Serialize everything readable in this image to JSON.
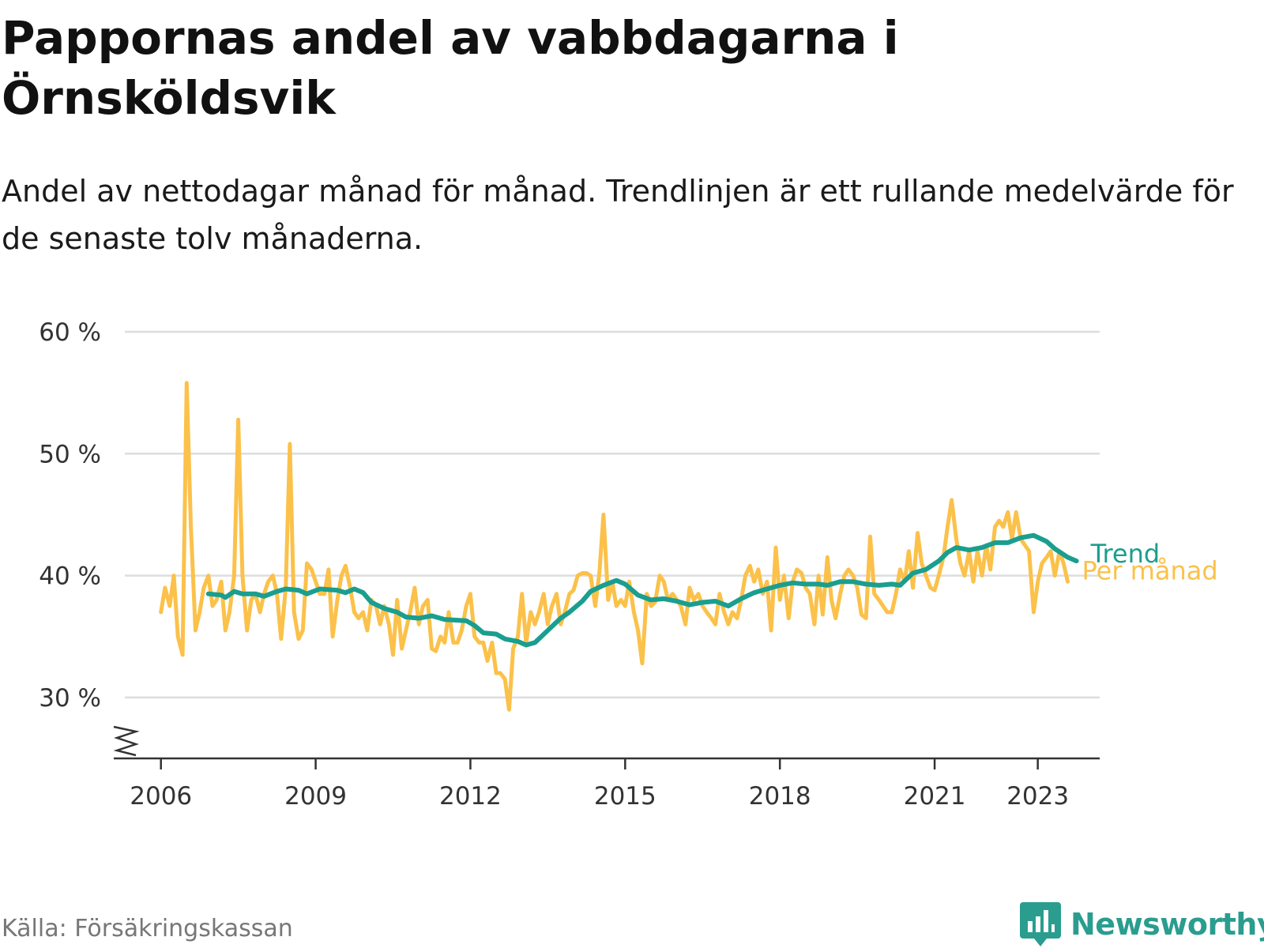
{
  "title": "Pappornas andel av vabbdagarna i Örnsköldsvik",
  "subtitle": "Andel av nettodagar månad för månad. Trendlinjen är ett rullande medelvärde för de senaste tolv månaderna.",
  "source": "Källa: Försäkringskassan",
  "brand": "Newsworthy",
  "colors": {
    "per_month": "#fbc14a",
    "trend": "#1a9e8f",
    "grid": "#dddddd",
    "axis": "#333333",
    "brand": "#2a9d8f"
  },
  "chart_data": {
    "type": "line",
    "y_tick_labels": [
      "30 %",
      "40 %",
      "50 %",
      "60 %"
    ],
    "y_ticks": [
      30,
      40,
      50,
      60
    ],
    "x_tick_labels": [
      "2006",
      "2009",
      "2012",
      "2015",
      "2018",
      "2021",
      "2023"
    ],
    "x_ticks": [
      2006,
      2009,
      2012,
      2015,
      2018,
      2021,
      2023
    ],
    "ylim": [
      25,
      60
    ],
    "xlim": [
      2005.3,
      2024.2
    ],
    "grid": true,
    "broken_y_axis": true,
    "series": [
      {
        "name": "Per månad",
        "points": [
          [
            2006.0,
            37
          ],
          [
            2006.08,
            39
          ],
          [
            2006.17,
            37.5
          ],
          [
            2006.25,
            40
          ],
          [
            2006.33,
            35
          ],
          [
            2006.42,
            33.5
          ],
          [
            2006.5,
            55.8
          ],
          [
            2006.58,
            44
          ],
          [
            2006.67,
            35.5
          ],
          [
            2006.75,
            37
          ],
          [
            2006.83,
            39
          ],
          [
            2006.92,
            40
          ],
          [
            2007.0,
            37.5
          ],
          [
            2007.08,
            38
          ],
          [
            2007.17,
            39.5
          ],
          [
            2007.25,
            35.5
          ],
          [
            2007.33,
            37
          ],
          [
            2007.42,
            40
          ],
          [
            2007.5,
            52.8
          ],
          [
            2007.58,
            40
          ],
          [
            2007.67,
            35.5
          ],
          [
            2007.75,
            38
          ],
          [
            2007.83,
            38.5
          ],
          [
            2007.92,
            37
          ],
          [
            2008.0,
            38.5
          ],
          [
            2008.08,
            39.5
          ],
          [
            2008.17,
            40
          ],
          [
            2008.25,
            38.5
          ],
          [
            2008.33,
            34.8
          ],
          [
            2008.42,
            39
          ],
          [
            2008.5,
            50.8
          ],
          [
            2008.58,
            37
          ],
          [
            2008.67,
            34.8
          ],
          [
            2008.75,
            35.5
          ],
          [
            2008.83,
            41
          ],
          [
            2008.92,
            40.5
          ],
          [
            2009.0,
            39.5
          ],
          [
            2009.08,
            38.5
          ],
          [
            2009.17,
            38.5
          ],
          [
            2009.25,
            40.5
          ],
          [
            2009.33,
            35
          ],
          [
            2009.42,
            38
          ],
          [
            2009.5,
            40
          ],
          [
            2009.58,
            40.8
          ],
          [
            2009.67,
            39
          ],
          [
            2009.75,
            37
          ],
          [
            2009.83,
            36.5
          ],
          [
            2009.92,
            37
          ],
          [
            2010.0,
            35.5
          ],
          [
            2010.08,
            38
          ],
          [
            2010.17,
            37.5
          ],
          [
            2010.25,
            36
          ],
          [
            2010.33,
            37.5
          ],
          [
            2010.42,
            36
          ],
          [
            2010.5,
            33.5
          ],
          [
            2010.58,
            38
          ],
          [
            2010.67,
            34
          ],
          [
            2010.75,
            35.5
          ],
          [
            2010.83,
            37
          ],
          [
            2010.92,
            39
          ],
          [
            2011.0,
            36
          ],
          [
            2011.08,
            37.5
          ],
          [
            2011.17,
            38
          ],
          [
            2011.25,
            34
          ],
          [
            2011.33,
            33.8
          ],
          [
            2011.42,
            35
          ],
          [
            2011.5,
            34.5
          ],
          [
            2011.58,
            37
          ],
          [
            2011.67,
            34.5
          ],
          [
            2011.75,
            34.5
          ],
          [
            2011.83,
            35.5
          ],
          [
            2011.92,
            37.5
          ],
          [
            2012.0,
            38.5
          ],
          [
            2012.08,
            35
          ],
          [
            2012.17,
            34.5
          ],
          [
            2012.25,
            34.5
          ],
          [
            2012.33,
            33
          ],
          [
            2012.42,
            34.5
          ],
          [
            2012.5,
            32
          ],
          [
            2012.58,
            32
          ],
          [
            2012.67,
            31.5
          ],
          [
            2012.75,
            29
          ],
          [
            2012.83,
            34
          ],
          [
            2012.92,
            35
          ],
          [
            2013.0,
            38.5
          ],
          [
            2013.08,
            34.5
          ],
          [
            2013.17,
            37
          ],
          [
            2013.25,
            36
          ],
          [
            2013.33,
            37
          ],
          [
            2013.42,
            38.5
          ],
          [
            2013.5,
            36
          ],
          [
            2013.58,
            37.5
          ],
          [
            2013.67,
            38.5
          ],
          [
            2013.75,
            36
          ],
          [
            2013.83,
            37
          ],
          [
            2013.92,
            38.5
          ],
          [
            2014.0,
            38.8
          ],
          [
            2014.08,
            40
          ],
          [
            2014.17,
            40.2
          ],
          [
            2014.25,
            40.2
          ],
          [
            2014.33,
            40
          ],
          [
            2014.42,
            37.5
          ],
          [
            2014.5,
            40.2
          ],
          [
            2014.58,
            45
          ],
          [
            2014.67,
            38
          ],
          [
            2014.75,
            39.5
          ],
          [
            2014.83,
            37.5
          ],
          [
            2014.92,
            38
          ],
          [
            2015.0,
            37.5
          ],
          [
            2015.08,
            39.5
          ],
          [
            2015.17,
            37
          ],
          [
            2015.25,
            35.5
          ],
          [
            2015.33,
            32.8
          ],
          [
            2015.42,
            38.5
          ],
          [
            2015.5,
            37.5
          ],
          [
            2015.58,
            37.8
          ],
          [
            2015.67,
            40
          ],
          [
            2015.75,
            39.5
          ],
          [
            2015.83,
            38
          ],
          [
            2015.92,
            38.5
          ],
          [
            2016.0,
            38
          ],
          [
            2016.08,
            37.5
          ],
          [
            2016.17,
            36
          ],
          [
            2016.25,
            39
          ],
          [
            2016.33,
            38
          ],
          [
            2016.42,
            38.5
          ],
          [
            2016.5,
            37.5
          ],
          [
            2016.58,
            37
          ],
          [
            2016.67,
            36.5
          ],
          [
            2016.75,
            36
          ],
          [
            2016.83,
            38.5
          ],
          [
            2016.92,
            37
          ],
          [
            2017.0,
            36
          ],
          [
            2017.08,
            37
          ],
          [
            2017.17,
            36.5
          ],
          [
            2017.25,
            38
          ],
          [
            2017.33,
            40
          ],
          [
            2017.42,
            40.8
          ],
          [
            2017.5,
            39.5
          ],
          [
            2017.58,
            40.5
          ],
          [
            2017.67,
            38.5
          ],
          [
            2017.75,
            39.5
          ],
          [
            2017.83,
            35.5
          ],
          [
            2017.92,
            42.3
          ],
          [
            2018.0,
            38
          ],
          [
            2018.08,
            40
          ],
          [
            2018.17,
            36.5
          ],
          [
            2018.25,
            39.5
          ],
          [
            2018.33,
            40.5
          ],
          [
            2018.42,
            40.2
          ],
          [
            2018.5,
            39
          ],
          [
            2018.58,
            38.5
          ],
          [
            2018.67,
            36
          ],
          [
            2018.75,
            40
          ],
          [
            2018.83,
            36.8
          ],
          [
            2018.92,
            41.5
          ],
          [
            2019.0,
            38
          ],
          [
            2019.08,
            36.5
          ],
          [
            2019.17,
            38.5
          ],
          [
            2019.25,
            40
          ],
          [
            2019.33,
            40.5
          ],
          [
            2019.42,
            40
          ],
          [
            2019.5,
            39
          ],
          [
            2019.58,
            36.8
          ],
          [
            2019.67,
            36.5
          ],
          [
            2019.75,
            43.2
          ],
          [
            2019.83,
            38.5
          ],
          [
            2019.92,
            38
          ],
          [
            2020.0,
            37.5
          ],
          [
            2020.08,
            37
          ],
          [
            2020.17,
            37
          ],
          [
            2020.25,
            38.5
          ],
          [
            2020.33,
            40.5
          ],
          [
            2020.42,
            39.5
          ],
          [
            2020.5,
            42
          ],
          [
            2020.58,
            39
          ],
          [
            2020.67,
            43.5
          ],
          [
            2020.75,
            41
          ],
          [
            2020.83,
            40
          ],
          [
            2020.92,
            39
          ],
          [
            2021.0,
            38.8
          ],
          [
            2021.08,
            40
          ],
          [
            2021.17,
            41.5
          ],
          [
            2021.25,
            44
          ],
          [
            2021.33,
            46.2
          ],
          [
            2021.42,
            43
          ],
          [
            2021.5,
            41
          ],
          [
            2021.58,
            40
          ],
          [
            2021.67,
            42
          ],
          [
            2021.75,
            39.5
          ],
          [
            2021.83,
            42
          ],
          [
            2021.92,
            40
          ],
          [
            2022.0,
            42.5
          ],
          [
            2022.08,
            40.5
          ],
          [
            2022.17,
            44
          ],
          [
            2022.25,
            44.5
          ],
          [
            2022.33,
            44
          ],
          [
            2022.42,
            45.2
          ],
          [
            2022.5,
            43
          ],
          [
            2022.58,
            45.2
          ],
          [
            2022.67,
            43
          ],
          [
            2022.75,
            42.5
          ],
          [
            2022.83,
            42
          ],
          [
            2022.92,
            37
          ],
          [
            2023.0,
            39.5
          ],
          [
            2023.08,
            41
          ],
          [
            2023.17,
            41.5
          ],
          [
            2023.25,
            42
          ],
          [
            2023.33,
            40
          ],
          [
            2023.42,
            42
          ],
          [
            2023.5,
            41
          ],
          [
            2023.58,
            39.5
          ]
        ]
      },
      {
        "name": "Trend",
        "points": [
          [
            2006.92,
            38.5
          ],
          [
            2007.17,
            38.4
          ],
          [
            2007.25,
            38.2
          ],
          [
            2007.42,
            38.7
          ],
          [
            2007.58,
            38.5
          ],
          [
            2007.83,
            38.5
          ],
          [
            2008.0,
            38.3
          ],
          [
            2008.25,
            38.7
          ],
          [
            2008.42,
            38.9
          ],
          [
            2008.67,
            38.8
          ],
          [
            2008.83,
            38.5
          ],
          [
            2009.08,
            38.9
          ],
          [
            2009.42,
            38.8
          ],
          [
            2009.58,
            38.6
          ],
          [
            2009.75,
            38.9
          ],
          [
            2009.92,
            38.6
          ],
          [
            2010.08,
            37.8
          ],
          [
            2010.33,
            37.3
          ],
          [
            2010.58,
            37
          ],
          [
            2010.75,
            36.6
          ],
          [
            2011.0,
            36.5
          ],
          [
            2011.25,
            36.7
          ],
          [
            2011.5,
            36.4
          ],
          [
            2011.92,
            36.3
          ],
          [
            2012.08,
            35.9
          ],
          [
            2012.25,
            35.3
          ],
          [
            2012.5,
            35.2
          ],
          [
            2012.67,
            34.8
          ],
          [
            2012.92,
            34.6
          ],
          [
            2013.08,
            34.3
          ],
          [
            2013.25,
            34.5
          ],
          [
            2013.5,
            35.5
          ],
          [
            2013.75,
            36.5
          ],
          [
            2013.92,
            37
          ],
          [
            2014.17,
            37.9
          ],
          [
            2014.33,
            38.7
          ],
          [
            2014.58,
            39.2
          ],
          [
            2014.83,
            39.6
          ],
          [
            2015.0,
            39.3
          ],
          [
            2015.25,
            38.4
          ],
          [
            2015.5,
            38
          ],
          [
            2015.75,
            38.1
          ],
          [
            2016.0,
            37.9
          ],
          [
            2016.25,
            37.6
          ],
          [
            2016.5,
            37.8
          ],
          [
            2016.75,
            37.9
          ],
          [
            2017.0,
            37.5
          ],
          [
            2017.25,
            38.1
          ],
          [
            2017.5,
            38.6
          ],
          [
            2017.75,
            38.9
          ],
          [
            2018.0,
            39.2
          ],
          [
            2018.25,
            39.4
          ],
          [
            2018.5,
            39.3
          ],
          [
            2018.75,
            39.3
          ],
          [
            2018.92,
            39.2
          ],
          [
            2019.17,
            39.5
          ],
          [
            2019.42,
            39.5
          ],
          [
            2019.67,
            39.3
          ],
          [
            2019.92,
            39.2
          ],
          [
            2020.17,
            39.3
          ],
          [
            2020.33,
            39.2
          ],
          [
            2020.58,
            40.2
          ],
          [
            2020.83,
            40.5
          ],
          [
            2021.08,
            41.2
          ],
          [
            2021.25,
            41.9
          ],
          [
            2021.42,
            42.3
          ],
          [
            2021.67,
            42.1
          ],
          [
            2021.92,
            42.3
          ],
          [
            2022.17,
            42.7
          ],
          [
            2022.42,
            42.7
          ],
          [
            2022.67,
            43.1
          ],
          [
            2022.92,
            43.3
          ],
          [
            2023.17,
            42.8
          ],
          [
            2023.33,
            42.2
          ],
          [
            2023.58,
            41.5
          ],
          [
            2023.75,
            41.2
          ]
        ]
      }
    ]
  }
}
